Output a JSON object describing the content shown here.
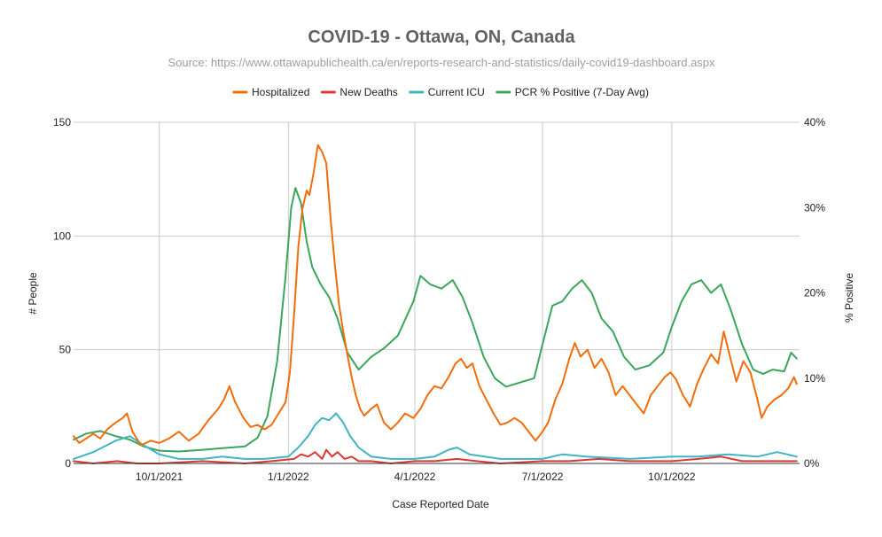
{
  "chart_data": {
    "type": "line",
    "title": "COVID-19 -  Ottawa, ON, Canada",
    "subtitle": "Source: https://www.ottawapublichealth.ca/en/reports-research-and-statistics/daily-covid19-dashboard.aspx",
    "xlabel": "Case Reported Date",
    "ylabel_left": "# People",
    "ylabel_right": "% Positive",
    "xlim": [
      "2021-08-01",
      "2022-12-31"
    ],
    "x_ticks": [
      "2021-10-01",
      "2022-01-01",
      "2022-04-01",
      "2022-07-01",
      "2022-10-01"
    ],
    "x_tick_labels": [
      "10/1/2021",
      "1/1/2022",
      "4/1/2022",
      "7/1/2022",
      "10/1/2022"
    ],
    "ylim_left": [
      0,
      150
    ],
    "y_ticks_left": [
      0,
      50,
      100,
      150
    ],
    "y_tick_labels_left": [
      "0",
      "50",
      "100",
      "150"
    ],
    "ylim_right": [
      0,
      40
    ],
    "y_ticks_right": [
      0,
      10,
      20,
      30,
      40
    ],
    "y_tick_labels_right": [
      "0%",
      "10%",
      "20%",
      "30%",
      "40%"
    ],
    "legend_position": "top",
    "grid": true,
    "series": [
      {
        "name": "Hospitalized",
        "axis": "left",
        "color": "#f36c0a",
        "points": [
          [
            "2021-08-01",
            12
          ],
          [
            "2021-08-05",
            9
          ],
          [
            "2021-08-10",
            11
          ],
          [
            "2021-08-15",
            13
          ],
          [
            "2021-08-20",
            11
          ],
          [
            "2021-08-25",
            15
          ],
          [
            "2021-08-31",
            18
          ],
          [
            "2021-09-05",
            20
          ],
          [
            "2021-09-08",
            22
          ],
          [
            "2021-09-12",
            14
          ],
          [
            "2021-09-18",
            8
          ],
          [
            "2021-09-25",
            10
          ],
          [
            "2021-10-01",
            9
          ],
          [
            "2021-10-08",
            11
          ],
          [
            "2021-10-15",
            14
          ],
          [
            "2021-10-22",
            10
          ],
          [
            "2021-10-29",
            13
          ],
          [
            "2021-11-05",
            19
          ],
          [
            "2021-11-12",
            24
          ],
          [
            "2021-11-16",
            28
          ],
          [
            "2021-11-20",
            34
          ],
          [
            "2021-11-24",
            27
          ],
          [
            "2021-11-30",
            20
          ],
          [
            "2021-12-05",
            16
          ],
          [
            "2021-12-10",
            17
          ],
          [
            "2021-12-15",
            15
          ],
          [
            "2021-12-20",
            17
          ],
          [
            "2021-12-25",
            22
          ],
          [
            "2021-12-30",
            27
          ],
          [
            "2022-01-02",
            40
          ],
          [
            "2022-01-05",
            65
          ],
          [
            "2022-01-08",
            95
          ],
          [
            "2022-01-11",
            112
          ],
          [
            "2022-01-14",
            120
          ],
          [
            "2022-01-16",
            118
          ],
          [
            "2022-01-19",
            128
          ],
          [
            "2022-01-22",
            140
          ],
          [
            "2022-01-25",
            137
          ],
          [
            "2022-01-28",
            132
          ],
          [
            "2022-01-31",
            108
          ],
          [
            "2022-02-03",
            88
          ],
          [
            "2022-02-06",
            70
          ],
          [
            "2022-02-09",
            58
          ],
          [
            "2022-02-12",
            48
          ],
          [
            "2022-02-15",
            38
          ],
          [
            "2022-02-18",
            30
          ],
          [
            "2022-02-21",
            24
          ],
          [
            "2022-02-24",
            21
          ],
          [
            "2022-03-01",
            24
          ],
          [
            "2022-03-05",
            26
          ],
          [
            "2022-03-10",
            18
          ],
          [
            "2022-03-15",
            15
          ],
          [
            "2022-03-20",
            18
          ],
          [
            "2022-03-25",
            22
          ],
          [
            "2022-03-31",
            20
          ],
          [
            "2022-04-05",
            24
          ],
          [
            "2022-04-10",
            30
          ],
          [
            "2022-04-15",
            34
          ],
          [
            "2022-04-20",
            33
          ],
          [
            "2022-04-25",
            38
          ],
          [
            "2022-04-30",
            44
          ],
          [
            "2022-05-04",
            46
          ],
          [
            "2022-05-08",
            42
          ],
          [
            "2022-05-12",
            44
          ],
          [
            "2022-05-17",
            34
          ],
          [
            "2022-05-22",
            28
          ],
          [
            "2022-05-27",
            22
          ],
          [
            "2022-06-01",
            17
          ],
          [
            "2022-06-06",
            18
          ],
          [
            "2022-06-11",
            20
          ],
          [
            "2022-06-16",
            18
          ],
          [
            "2022-06-21",
            14
          ],
          [
            "2022-06-26",
            10
          ],
          [
            "2022-07-01",
            14
          ],
          [
            "2022-07-05",
            18
          ],
          [
            "2022-07-10",
            28
          ],
          [
            "2022-07-15",
            35
          ],
          [
            "2022-07-20",
            46
          ],
          [
            "2022-07-24",
            53
          ],
          [
            "2022-07-28",
            47
          ],
          [
            "2022-08-02",
            50
          ],
          [
            "2022-08-07",
            42
          ],
          [
            "2022-08-12",
            46
          ],
          [
            "2022-08-17",
            40
          ],
          [
            "2022-08-22",
            30
          ],
          [
            "2022-08-27",
            34
          ],
          [
            "2022-09-01",
            30
          ],
          [
            "2022-09-06",
            26
          ],
          [
            "2022-09-11",
            22
          ],
          [
            "2022-09-16",
            30
          ],
          [
            "2022-09-21",
            34
          ],
          [
            "2022-09-26",
            38
          ],
          [
            "2022-09-30",
            40
          ],
          [
            "2022-10-04",
            37
          ],
          [
            "2022-10-09",
            30
          ],
          [
            "2022-10-14",
            25
          ],
          [
            "2022-10-19",
            35
          ],
          [
            "2022-10-24",
            42
          ],
          [
            "2022-10-29",
            48
          ],
          [
            "2022-11-03",
            44
          ],
          [
            "2022-11-07",
            58
          ],
          [
            "2022-11-11",
            48
          ],
          [
            "2022-11-16",
            36
          ],
          [
            "2022-11-21",
            45
          ],
          [
            "2022-11-26",
            40
          ],
          [
            "2022-12-01",
            28
          ],
          [
            "2022-12-04",
            20
          ],
          [
            "2022-12-08",
            25
          ],
          [
            "2022-12-13",
            28
          ],
          [
            "2022-12-18",
            30
          ],
          [
            "2022-12-23",
            33
          ],
          [
            "2022-12-27",
            38
          ],
          [
            "2022-12-29",
            35
          ]
        ]
      },
      {
        "name": "New Deaths",
        "axis": "left",
        "color": "#db3a32",
        "points": [
          [
            "2021-08-01",
            1
          ],
          [
            "2021-08-15",
            0
          ],
          [
            "2021-09-01",
            1
          ],
          [
            "2021-09-15",
            0
          ],
          [
            "2021-10-01",
            0
          ],
          [
            "2021-11-01",
            1
          ],
          [
            "2021-12-01",
            0
          ],
          [
            "2021-12-20",
            1
          ],
          [
            "2022-01-05",
            2
          ],
          [
            "2022-01-10",
            4
          ],
          [
            "2022-01-15",
            3
          ],
          [
            "2022-01-20",
            5
          ],
          [
            "2022-01-25",
            2
          ],
          [
            "2022-01-28",
            6
          ],
          [
            "2022-02-01",
            3
          ],
          [
            "2022-02-05",
            5
          ],
          [
            "2022-02-10",
            2
          ],
          [
            "2022-02-15",
            3
          ],
          [
            "2022-02-20",
            1
          ],
          [
            "2022-03-01",
            1
          ],
          [
            "2022-03-15",
            0
          ],
          [
            "2022-04-01",
            1
          ],
          [
            "2022-04-15",
            1
          ],
          [
            "2022-05-01",
            2
          ],
          [
            "2022-05-15",
            1
          ],
          [
            "2022-06-01",
            0
          ],
          [
            "2022-07-01",
            1
          ],
          [
            "2022-07-20",
            1
          ],
          [
            "2022-08-10",
            2
          ],
          [
            "2022-09-01",
            1
          ],
          [
            "2022-10-01",
            1
          ],
          [
            "2022-10-20",
            2
          ],
          [
            "2022-11-05",
            3
          ],
          [
            "2022-11-20",
            1
          ],
          [
            "2022-12-10",
            1
          ],
          [
            "2022-12-29",
            1
          ]
        ]
      },
      {
        "name": "Current ICU",
        "axis": "left",
        "color": "#3fb5c2",
        "points": [
          [
            "2021-08-01",
            2
          ],
          [
            "2021-08-15",
            5
          ],
          [
            "2021-08-31",
            10
          ],
          [
            "2021-09-10",
            12
          ],
          [
            "2021-09-20",
            8
          ],
          [
            "2021-10-01",
            4
          ],
          [
            "2021-10-15",
            2
          ],
          [
            "2021-11-01",
            2
          ],
          [
            "2021-11-15",
            3
          ],
          [
            "2021-12-01",
            2
          ],
          [
            "2021-12-15",
            2
          ],
          [
            "2022-01-01",
            3
          ],
          [
            "2022-01-08",
            7
          ],
          [
            "2022-01-15",
            12
          ],
          [
            "2022-01-20",
            17
          ],
          [
            "2022-01-25",
            20
          ],
          [
            "2022-01-30",
            19
          ],
          [
            "2022-02-04",
            22
          ],
          [
            "2022-02-09",
            18
          ],
          [
            "2022-02-14",
            12
          ],
          [
            "2022-02-20",
            7
          ],
          [
            "2022-03-01",
            3
          ],
          [
            "2022-03-15",
            2
          ],
          [
            "2022-04-01",
            2
          ],
          [
            "2022-04-15",
            3
          ],
          [
            "2022-04-25",
            6
          ],
          [
            "2022-05-01",
            7
          ],
          [
            "2022-05-10",
            4
          ],
          [
            "2022-06-01",
            2
          ],
          [
            "2022-07-01",
            2
          ],
          [
            "2022-07-15",
            4
          ],
          [
            "2022-08-01",
            3
          ],
          [
            "2022-09-01",
            2
          ],
          [
            "2022-10-01",
            3
          ],
          [
            "2022-10-20",
            3
          ],
          [
            "2022-11-10",
            4
          ],
          [
            "2022-12-01",
            3
          ],
          [
            "2022-12-15",
            5
          ],
          [
            "2022-12-29",
            3
          ]
        ]
      },
      {
        "name": "PCR % Positive (7-Day Avg)",
        "axis": "right",
        "color": "#3ba55c",
        "points": [
          [
            "2021-08-01",
            2.8
          ],
          [
            "2021-08-10",
            3.5
          ],
          [
            "2021-08-20",
            3.8
          ],
          [
            "2021-08-31",
            3.2
          ],
          [
            "2021-09-10",
            2.8
          ],
          [
            "2021-09-20",
            2.0
          ],
          [
            "2021-10-01",
            1.5
          ],
          [
            "2021-10-15",
            1.4
          ],
          [
            "2021-11-01",
            1.6
          ],
          [
            "2021-11-15",
            1.8
          ],
          [
            "2021-12-01",
            2.0
          ],
          [
            "2021-12-10",
            3.0
          ],
          [
            "2021-12-17",
            5.5
          ],
          [
            "2021-12-24",
            12.0
          ],
          [
            "2021-12-30",
            22.0
          ],
          [
            "2022-01-03",
            30.0
          ],
          [
            "2022-01-06",
            32.3
          ],
          [
            "2022-01-10",
            30.5
          ],
          [
            "2022-01-14",
            26.0
          ],
          [
            "2022-01-18",
            23.0
          ],
          [
            "2022-01-24",
            21.0
          ],
          [
            "2022-01-30",
            19.5
          ],
          [
            "2022-02-05",
            17.0
          ],
          [
            "2022-02-12",
            13.0
          ],
          [
            "2022-02-20",
            11.0
          ],
          [
            "2022-03-01",
            12.5
          ],
          [
            "2022-03-10",
            13.5
          ],
          [
            "2022-03-20",
            15.0
          ],
          [
            "2022-03-31",
            19.0
          ],
          [
            "2022-04-05",
            22.0
          ],
          [
            "2022-04-12",
            21.0
          ],
          [
            "2022-04-20",
            20.5
          ],
          [
            "2022-04-28",
            21.5
          ],
          [
            "2022-05-05",
            19.5
          ],
          [
            "2022-05-12",
            16.5
          ],
          [
            "2022-05-20",
            12.5
          ],
          [
            "2022-05-28",
            10.0
          ],
          [
            "2022-06-05",
            9.0
          ],
          [
            "2022-06-15",
            9.5
          ],
          [
            "2022-06-25",
            10.0
          ],
          [
            "2022-07-01",
            14.0
          ],
          [
            "2022-07-08",
            18.5
          ],
          [
            "2022-07-15",
            19.0
          ],
          [
            "2022-07-22",
            20.5
          ],
          [
            "2022-07-29",
            21.5
          ],
          [
            "2022-08-05",
            20.0
          ],
          [
            "2022-08-12",
            17.0
          ],
          [
            "2022-08-20",
            15.5
          ],
          [
            "2022-08-28",
            12.5
          ],
          [
            "2022-09-05",
            11.0
          ],
          [
            "2022-09-15",
            11.5
          ],
          [
            "2022-09-25",
            13.0
          ],
          [
            "2022-10-01",
            16.0
          ],
          [
            "2022-10-08",
            19.0
          ],
          [
            "2022-10-15",
            21.0
          ],
          [
            "2022-10-22",
            21.5
          ],
          [
            "2022-10-29",
            20.0
          ],
          [
            "2022-11-05",
            21.0
          ],
          [
            "2022-11-12",
            18.0
          ],
          [
            "2022-11-20",
            14.0
          ],
          [
            "2022-11-28",
            11.0
          ],
          [
            "2022-12-05",
            10.5
          ],
          [
            "2022-12-12",
            11.0
          ],
          [
            "2022-12-20",
            10.8
          ],
          [
            "2022-12-25",
            13.0
          ],
          [
            "2022-12-29",
            12.3
          ]
        ]
      }
    ]
  }
}
